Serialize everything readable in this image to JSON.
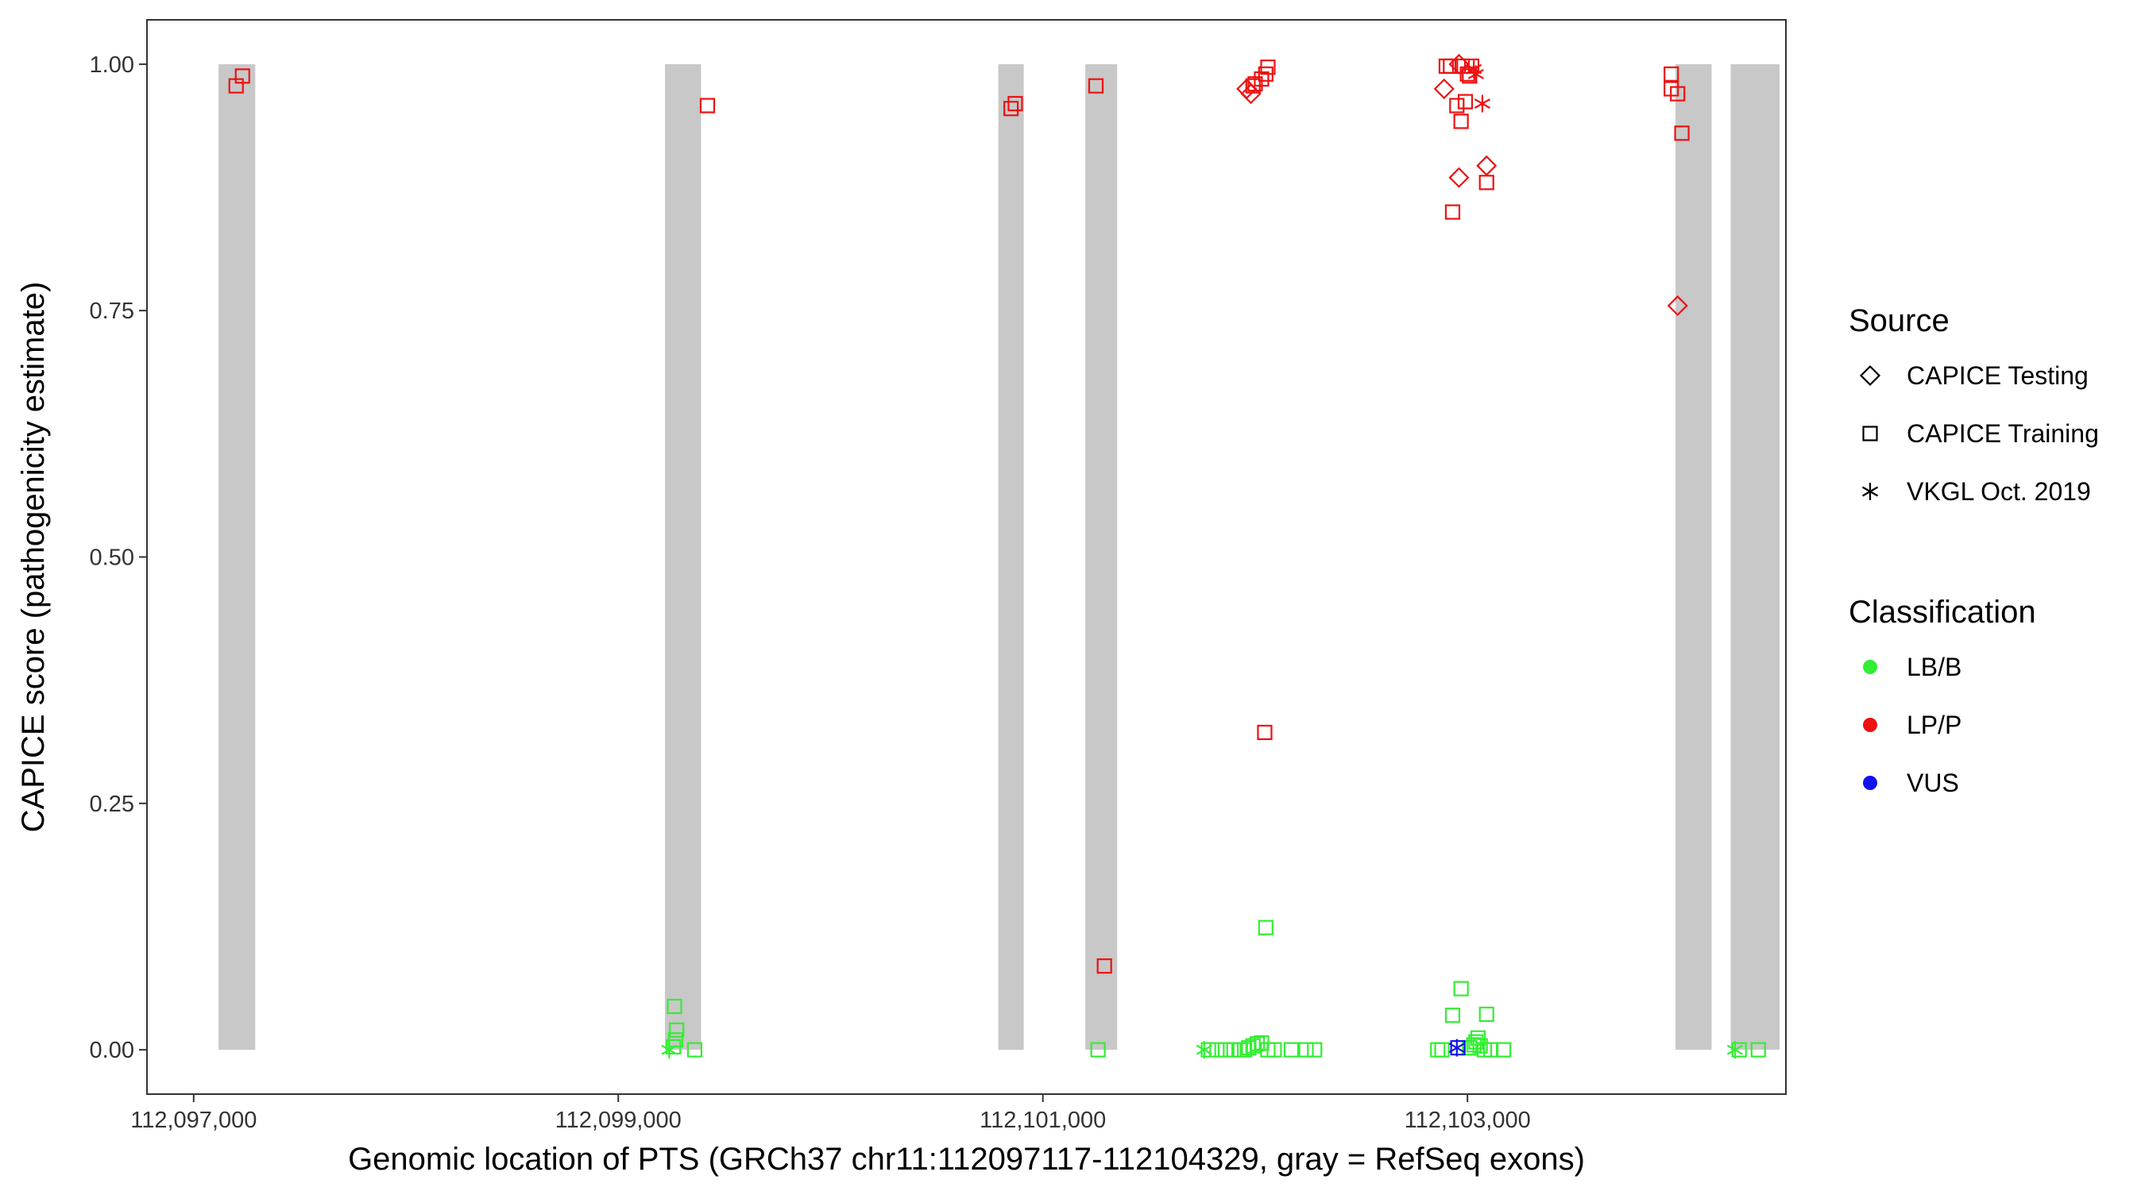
{
  "chart_data": {
    "type": "scatter",
    "xlabel": "Genomic location of PTS (GRCh37 chr11:112097117-112104329, gray = RefSeq exons)",
    "ylabel": "CAPICE score (pathogenicity estimate)",
    "xlim": [
      112096780,
      112104500
    ],
    "ylim": [
      -0.045,
      1.045
    ],
    "x_ticks": [
      112097000,
      112099000,
      112101000,
      112103000
    ],
    "x_tick_labels": [
      "112,097,000",
      "112,099,000",
      "112,101,000",
      "112,103,000"
    ],
    "y_ticks": [
      0.0,
      0.25,
      0.5,
      0.75,
      1.0
    ],
    "y_tick_labels": [
      "0.00",
      "0.25",
      "0.50",
      "0.75",
      "1.00"
    ],
    "grid": false,
    "exons": [
      [
        112097117,
        112097290
      ],
      [
        112099220,
        112099390
      ],
      [
        112100790,
        112100910
      ],
      [
        112101200,
        112101350
      ],
      [
        112103980,
        112104150
      ],
      [
        112104240,
        112104470
      ]
    ],
    "exon_color": "#c8c8c8",
    "legend": {
      "position": "right",
      "source_title": "Source",
      "source_items": [
        {
          "label": "CAPICE Testing",
          "shape": "diamond"
        },
        {
          "label": "CAPICE Training",
          "shape": "square"
        },
        {
          "label": "VKGL Oct. 2019",
          "shape": "asterisk"
        }
      ],
      "class_title": "Classification",
      "class_items": [
        {
          "label": "LB/B",
          "color": "#33ee33"
        },
        {
          "label": "LP/P",
          "color": "#ee1111"
        },
        {
          "label": "VUS",
          "color": "#1111ee"
        }
      ]
    },
    "series": [
      {
        "name": "LP/P",
        "color": "#ee1111",
        "points": [
          [
            112097200,
            0.978,
            "square"
          ],
          [
            112097230,
            0.988,
            "square"
          ],
          [
            112099420,
            0.958,
            "square"
          ],
          [
            112100850,
            0.955,
            "square"
          ],
          [
            112100870,
            0.96,
            "square"
          ],
          [
            112101250,
            0.978,
            "square"
          ],
          [
            112101290,
            0.085,
            "square"
          ],
          [
            112101960,
            0.975,
            "diamond"
          ],
          [
            112101980,
            0.97,
            "diamond"
          ],
          [
            112101990,
            0.978,
            "square"
          ],
          [
            112102000,
            0.98,
            "square"
          ],
          [
            112102030,
            0.985,
            "square"
          ],
          [
            112102050,
            0.99,
            "square"
          ],
          [
            112102060,
            0.997,
            "square"
          ],
          [
            112102045,
            0.322,
            "square"
          ],
          [
            112102890,
            0.975,
            "diamond"
          ],
          [
            112102900,
            0.998,
            "square"
          ],
          [
            112102920,
            0.998,
            "square"
          ],
          [
            112102950,
            0.958,
            "square"
          ],
          [
            112102960,
            1.0,
            "diamond"
          ],
          [
            112102970,
            0.942,
            "square"
          ],
          [
            112102975,
            0.998,
            "square"
          ],
          [
            112102990,
            0.962,
            "square"
          ],
          [
            112103000,
            0.99,
            "square"
          ],
          [
            112103010,
            0.988,
            "square"
          ],
          [
            112103020,
            0.998,
            "square"
          ],
          [
            112103030,
            0.995,
            "asterisk"
          ],
          [
            112103040,
            0.99,
            "asterisk"
          ],
          [
            112102930,
            0.85,
            "square"
          ],
          [
            112102960,
            0.885,
            "diamond"
          ],
          [
            112103070,
            0.96,
            "asterisk"
          ],
          [
            112103090,
            0.897,
            "diamond"
          ],
          [
            112103090,
            0.88,
            "square"
          ],
          [
            112103960,
            0.99,
            "square"
          ],
          [
            112103960,
            0.975,
            "square"
          ],
          [
            112103990,
            0.97,
            "square"
          ],
          [
            112104010,
            0.93,
            "square"
          ],
          [
            112103990,
            0.755,
            "diamond"
          ]
        ]
      },
      {
        "name": "LB/B",
        "color": "#33ee33",
        "points": [
          [
            112099240,
            0.0,
            "asterisk"
          ],
          [
            112099260,
            0.003,
            "square"
          ],
          [
            112099270,
            0.01,
            "square"
          ],
          [
            112099275,
            0.02,
            "square"
          ],
          [
            112099265,
            0.044,
            "square"
          ],
          [
            112099360,
            0.0,
            "square"
          ],
          [
            112101260,
            0.0,
            "square"
          ],
          [
            112101760,
            0.0,
            "asterisk"
          ],
          [
            112101780,
            0.0,
            "square"
          ],
          [
            112101820,
            0.0,
            "square"
          ],
          [
            112101860,
            0.0,
            "square"
          ],
          [
            112101900,
            0.0,
            "square"
          ],
          [
            112101930,
            0.0,
            "square"
          ],
          [
            112101950,
            0.0,
            "square"
          ],
          [
            112101970,
            0.002,
            "square"
          ],
          [
            112101990,
            0.004,
            "square"
          ],
          [
            112102010,
            0.006,
            "square"
          ],
          [
            112102030,
            0.007,
            "square"
          ],
          [
            112102060,
            0.0,
            "square"
          ],
          [
            112102090,
            0.0,
            "square"
          ],
          [
            112102170,
            0.0,
            "square"
          ],
          [
            112102240,
            0.0,
            "square"
          ],
          [
            112102280,
            0.0,
            "square"
          ],
          [
            112102050,
            0.124,
            "square"
          ],
          [
            112102860,
            0.0,
            "square"
          ],
          [
            112102880,
            0.0,
            "square"
          ],
          [
            112102930,
            0.035,
            "square"
          ],
          [
            112102970,
            0.062,
            "square"
          ],
          [
            112103010,
            0.002,
            "square"
          ],
          [
            112103030,
            0.005,
            "square"
          ],
          [
            112103040,
            0.008,
            "square"
          ],
          [
            112103050,
            0.012,
            "square"
          ],
          [
            112103060,
            0.004,
            "square"
          ],
          [
            112103080,
            0.0,
            "square"
          ],
          [
            112103090,
            0.036,
            "square"
          ],
          [
            112103110,
            0.0,
            "square"
          ],
          [
            112103170,
            0.0,
            "square"
          ],
          [
            112104260,
            0.0,
            "asterisk"
          ],
          [
            112104280,
            0.0,
            "square"
          ],
          [
            112104370,
            0.0,
            "square"
          ]
        ]
      },
      {
        "name": "VUS",
        "color": "#1111ee",
        "points": [
          [
            112102950,
            0.002,
            "asterisk"
          ],
          [
            112102955,
            0.002,
            "square"
          ]
        ]
      }
    ]
  }
}
